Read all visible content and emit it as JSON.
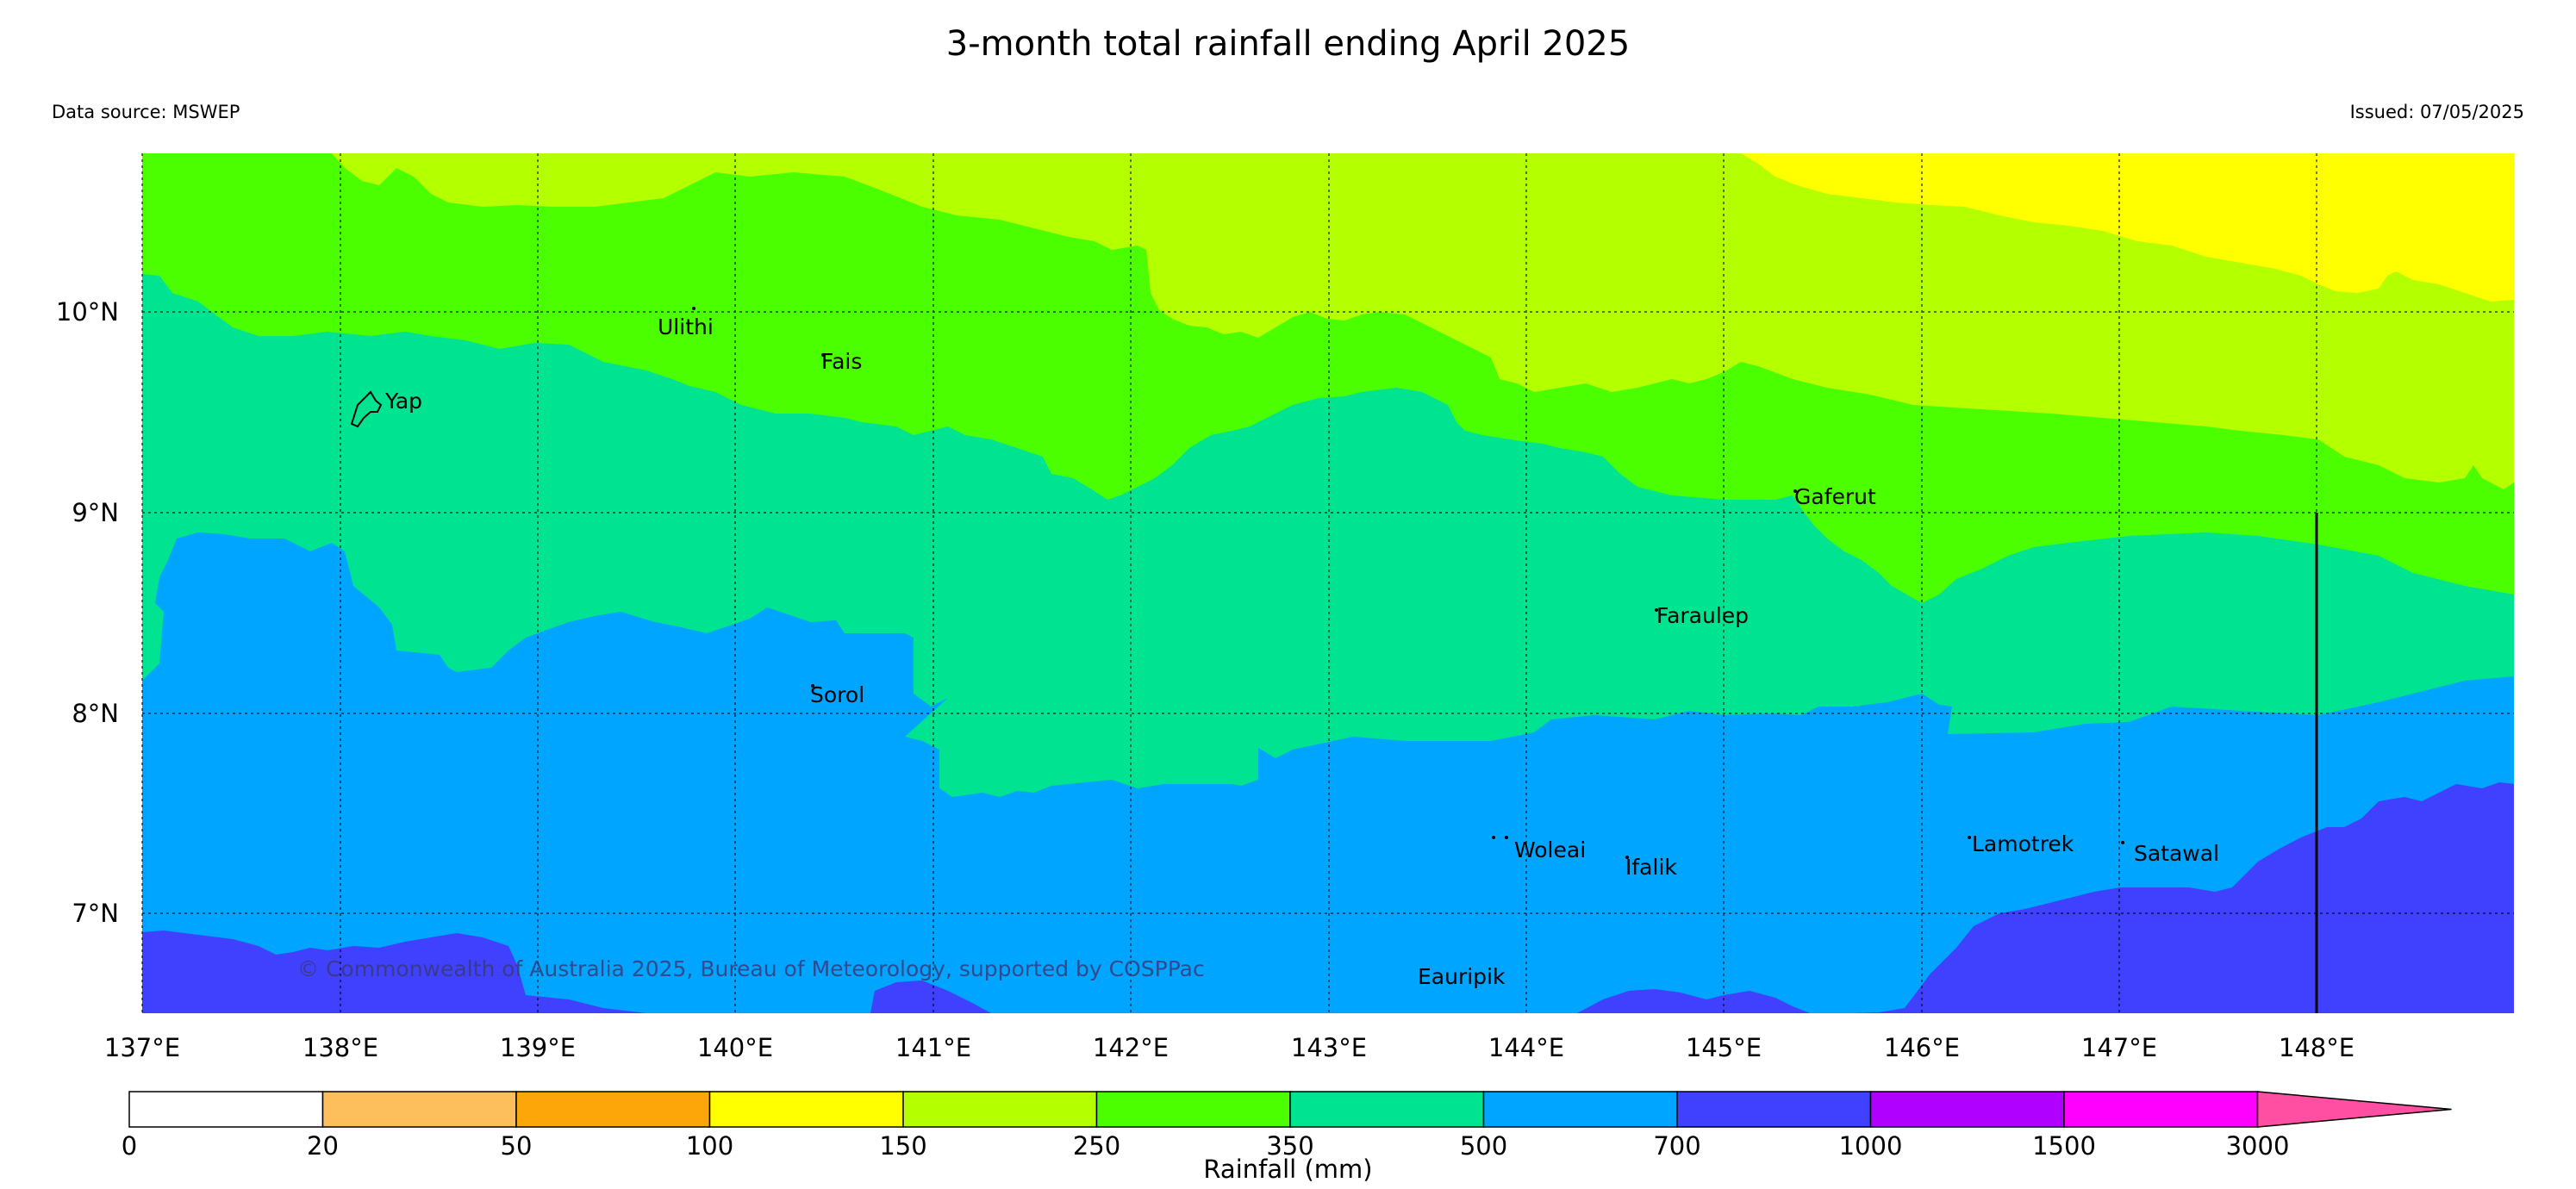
{
  "title": "3-month total rainfall ending April 2025",
  "data_source": "Data source: MSWEP",
  "issued": "Issued: 07/05/2025",
  "copyright": "© Commonwealth of Australia 2025, Bureau of Meteorology, supported by COSPPac",
  "axes": {
    "lon_ticks": [
      "137°E",
      "138°E",
      "139°E",
      "140°E",
      "141°E",
      "142°E",
      "143°E",
      "144°E",
      "145°E",
      "146°E",
      "147°E",
      "148°E"
    ],
    "lat_ticks": [
      "10°N",
      "9°N",
      "8°N",
      "7°N"
    ]
  },
  "places": [
    {
      "name": "Ulithi",
      "lon": 139.8,
      "lat": 10.05
    },
    {
      "name": "Fais",
      "lon": 140.5,
      "lat": 9.77
    },
    {
      "name": "Yap",
      "lon": 138.15,
      "lat": 9.55
    },
    {
      "name": "Gaferut",
      "lon": 145.35,
      "lat": 9.2
    },
    {
      "name": "Faraulep",
      "lon": 144.65,
      "lat": 8.6
    },
    {
      "name": "Sorol",
      "lon": 140.38,
      "lat": 8.15
    },
    {
      "name": "Woleai",
      "lon": 143.9,
      "lat": 7.37
    },
    {
      "name": "Ifalik",
      "lon": 144.45,
      "lat": 7.25
    },
    {
      "name": "Lamotrek",
      "lon": 146.3,
      "lat": 7.47
    },
    {
      "name": "Satawal",
      "lon": 147.05,
      "lat": 7.37
    },
    {
      "name": "Eauripik",
      "lon": 143.05,
      "lat": 6.68
    }
  ],
  "colorbar": {
    "label": "Rainfall (mm)",
    "ticks": [
      "0",
      "20",
      "50",
      "100",
      "150",
      "250",
      "350",
      "500",
      "700",
      "1000",
      "1500",
      "3000"
    ],
    "colors": [
      "#ffffff",
      "#fcbf5b",
      "#fda60a",
      "#ffff00",
      "#b4ff00",
      "#4cff00",
      "#00e391",
      "#00a5ff",
      "#4040ff",
      "#b000ff",
      "#ff00ff",
      "#ff4fa2"
    ]
  },
  "rainfall_bands_mm": {
    "north_east": "150-250 and 100-150",
    "north": "250-350",
    "central": "350-500",
    "south": "500-700",
    "south_edges": "700-1000"
  }
}
